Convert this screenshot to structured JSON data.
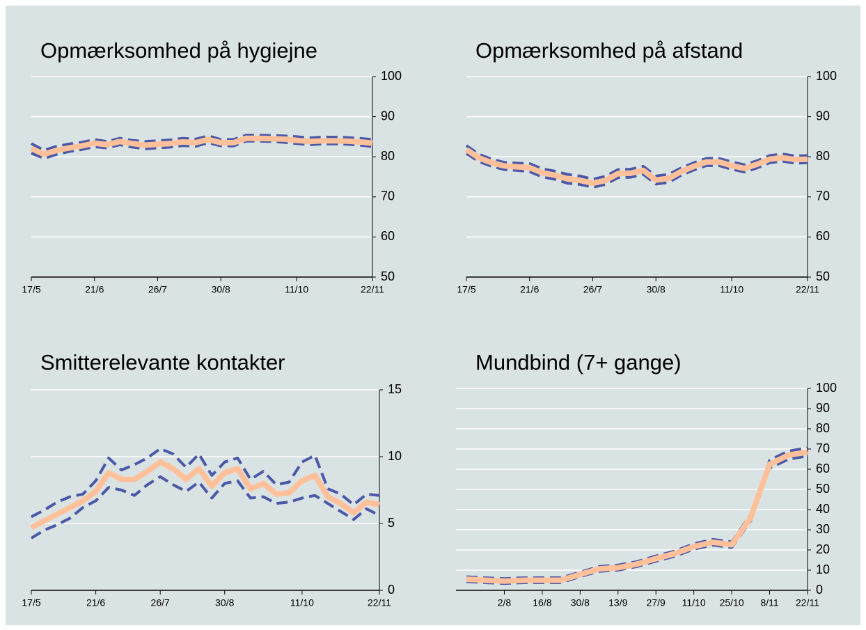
{
  "chart_data": [
    {
      "type": "line",
      "title": "Opmærksomhed på hygiejne",
      "categories": [
        "17/5",
        null,
        null,
        null,
        null,
        "21/6",
        null,
        null,
        null,
        null,
        "26/7",
        null,
        null,
        null,
        null,
        "30/8",
        null,
        null,
        null,
        null,
        null,
        "11/10",
        null,
        null,
        null,
        null,
        null,
        "22/11"
      ],
      "series": [
        {
          "color": "#4a58a8",
          "style": "dashed",
          "values": [
            83.3,
            81.6,
            82.6,
            83.2,
            83.6,
            84.3,
            83.8,
            84.6,
            84.1,
            83.8,
            84,
            84.2,
            84.6,
            84.4,
            85.2,
            84.3,
            84.3,
            85.4,
            85.4,
            85.3,
            85.2,
            85,
            84.7,
            84.9,
            84.9,
            84.8,
            84.6,
            84.3
          ]
        },
        {
          "color": "#4a58a8",
          "style": "dashed",
          "values": [
            80.9,
            79.6,
            80.6,
            81.3,
            81.8,
            82.5,
            82.2,
            83,
            82.4,
            82,
            82.2,
            82.4,
            82.8,
            82.6,
            83.5,
            82.7,
            82.7,
            83.9,
            83.9,
            83.8,
            83.6,
            83.3,
            83,
            83.2,
            83.2,
            83.1,
            82.9,
            82.5
          ]
        },
        {
          "color": "#ffc09a",
          "style": "solid",
          "values": [
            82.1,
            80.6,
            81.6,
            82.2,
            82.7,
            83.4,
            83,
            83.8,
            83.3,
            82.9,
            83.1,
            83.3,
            83.7,
            83.5,
            84.3,
            83.5,
            83.5,
            84.6,
            84.6,
            84.5,
            84.4,
            84.1,
            83.8,
            84,
            84,
            83.9,
            83.7,
            83.4
          ]
        }
      ],
      "ylim": [
        50,
        100
      ],
      "yticks": [
        50,
        60,
        70,
        80,
        90,
        100
      ],
      "grid": true
    },
    {
      "type": "line",
      "title": "Opmærksomhed på afstand",
      "categories": [
        "17/5",
        null,
        null,
        null,
        null,
        "21/6",
        null,
        null,
        null,
        null,
        "26/7",
        null,
        null,
        null,
        null,
        "30/8",
        null,
        null,
        null,
        null,
        null,
        "11/10",
        null,
        null,
        null,
        null,
        null,
        "22/11"
      ],
      "series": [
        {
          "color": "#4a58a8",
          "style": "dashed",
          "values": [
            82.8,
            80.6,
            79.4,
            78.6,
            78.4,
            78.3,
            77,
            76.4,
            75.6,
            75.2,
            74.4,
            75.1,
            76.8,
            76.9,
            77.6,
            75.2,
            75.6,
            77.2,
            78.5,
            79.6,
            79.6,
            78.7,
            78,
            79,
            80.3,
            80.7,
            80.2,
            80.3
          ]
        },
        {
          "color": "#4a58a8",
          "style": "dashed",
          "values": [
            80.8,
            78.8,
            77.6,
            76.8,
            76.6,
            76.3,
            75,
            74.4,
            73.4,
            73.1,
            72.4,
            73.1,
            74.8,
            74.9,
            75.6,
            73.2,
            73.6,
            75.4,
            76.7,
            77.8,
            77.8,
            76.9,
            76.2,
            77.2,
            78.5,
            78.9,
            78.4,
            78.5
          ]
        },
        {
          "color": "#ffc09a",
          "style": "solid",
          "values": [
            81.8,
            79.7,
            78.5,
            77.7,
            77.5,
            77.3,
            76,
            75.4,
            74.5,
            74.1,
            73.4,
            74.1,
            75.8,
            75.9,
            76.6,
            74.2,
            74.6,
            76.3,
            77.6,
            78.7,
            78.7,
            77.8,
            77.1,
            78.1,
            79.4,
            79.8,
            79.3,
            79.4
          ]
        }
      ],
      "ylim": [
        50,
        100
      ],
      "yticks": [
        50,
        60,
        70,
        80,
        90,
        100
      ],
      "grid": true
    },
    {
      "type": "line",
      "title": "Smitterelevante kontakter",
      "categories": [
        "17/5",
        null,
        null,
        null,
        null,
        "21/6",
        null,
        null,
        null,
        null,
        "26/7",
        null,
        null,
        null,
        null,
        "30/8",
        null,
        null,
        null,
        null,
        null,
        "11/10",
        null,
        null,
        null,
        null,
        null,
        "22/11"
      ],
      "series": [
        {
          "color": "#4a58a8",
          "style": "dashed",
          "values": [
            5.5,
            6,
            6.6,
            7,
            7.2,
            8.2,
            9.9,
            9,
            9.4,
            9.9,
            10.6,
            10.2,
            9.2,
            10.2,
            8.6,
            9.6,
            9.9,
            8.3,
            8.9,
            7.9,
            8.1,
            9.6,
            10.1,
            7.6,
            7.2,
            6.4,
            7.2,
            7.1
          ]
        },
        {
          "color": "#4a58a8",
          "style": "dashed",
          "values": [
            3.9,
            4.5,
            4.9,
            5.4,
            6.2,
            6.7,
            7.7,
            7.5,
            7.1,
            7.9,
            8.5,
            7.9,
            7.4,
            8.1,
            6.9,
            8,
            8.2,
            6.9,
            7,
            6.5,
            6.6,
            6.9,
            7.1,
            6.5,
            5.9,
            5.3,
            6.1,
            5.6
          ]
        },
        {
          "color": "#ffc09a",
          "style": "solid",
          "values": [
            4.7,
            5.2,
            5.7,
            6.2,
            6.7,
            7.4,
            8.8,
            8.3,
            8.3,
            8.9,
            9.6,
            9.1,
            8.3,
            9.1,
            7.8,
            8.8,
            9.1,
            7.6,
            8,
            7.2,
            7.3,
            8.2,
            8.6,
            7,
            6.5,
            5.8,
            6.6,
            6.4
          ]
        }
      ],
      "ylim": [
        0,
        15
      ],
      "yticks": [
        0,
        5,
        10,
        15
      ],
      "grid": true
    },
    {
      "type": "line",
      "title": "Mundbind (7+ gange)",
      "categories": [
        null,
        null,
        "2/8",
        null,
        "16/8",
        null,
        "30/8",
        null,
        "13/9",
        null,
        "27/9",
        null,
        "11/10",
        null,
        "25/10",
        null,
        "8/11",
        null,
        "22/11"
      ],
      "series": [
        {
          "color": "#4a58a8",
          "style": "dashed",
          "values": [
            6.7,
            6.2,
            5.8,
            6.2,
            6.2,
            6.2,
            9,
            11.8,
            12.5,
            14.2,
            17,
            19.5,
            23,
            25.2,
            24,
            37.5,
            64.5,
            69,
            70.5
          ]
        },
        {
          "color": "#4a58a8",
          "style": "dashed",
          "values": [
            4.3,
            3.8,
            3.4,
            3.8,
            3.8,
            3.8,
            6.8,
            9.4,
            10,
            11.8,
            14.4,
            16.9,
            20.4,
            22.4,
            21.2,
            34.5,
            60.5,
            65,
            66.5
          ]
        },
        {
          "color": "#ffc09a",
          "style": "solid",
          "values": [
            5.5,
            5,
            4.6,
            5,
            5,
            5,
            7.9,
            10.6,
            11.2,
            13,
            15.7,
            18.2,
            21.7,
            23.8,
            22.6,
            36,
            62.5,
            67,
            68.5
          ]
        }
      ],
      "ylim": [
        0,
        100
      ],
      "yticks": [
        0,
        10,
        20,
        30,
        40,
        50,
        60,
        70,
        80,
        90,
        100
      ],
      "grid": true
    }
  ]
}
